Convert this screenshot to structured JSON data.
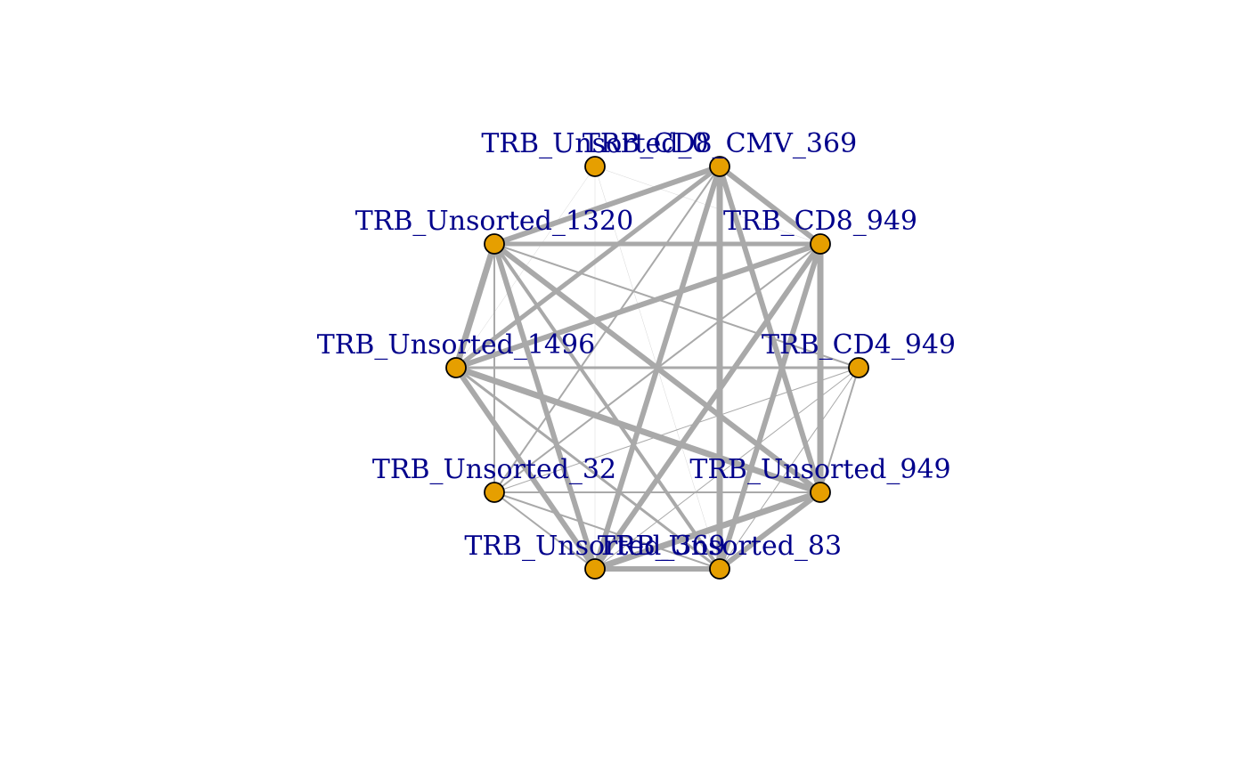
{
  "graph": {
    "node_fill": "#E69F00",
    "node_stroke": "#000000",
    "edge_color": "#A9A9A9",
    "label_color": "#00008B",
    "nodes": [
      {
        "id": "TRB_Unsorted_0",
        "label": "TRB_Unsorted_0"
      },
      {
        "id": "TRB_CD8_CMV_369",
        "label": "TRB_CD8_CMV_369"
      },
      {
        "id": "TRB_CD8_949",
        "label": "TRB_CD8_949"
      },
      {
        "id": "TRB_CD4_949",
        "label": "TRB_CD4_949"
      },
      {
        "id": "TRB_Unsorted_949",
        "label": "TRB_Unsorted_949"
      },
      {
        "id": "TRB_Unsorted_83",
        "label": "TRB_Unsorted_83"
      },
      {
        "id": "TRB_Unsorted_369",
        "label": "TRB_Unsorted_369"
      },
      {
        "id": "TRB_Unsorted_32",
        "label": "TRB_Unsorted_32"
      },
      {
        "id": "TRB_Unsorted_1496",
        "label": "TRB_Unsorted_1496"
      },
      {
        "id": "TRB_Unsorted_1320",
        "label": "TRB_Unsorted_1320"
      }
    ],
    "edges": [
      {
        "source": "TRB_CD8_CMV_369",
        "target": "TRB_CD8_949",
        "weight": 6
      },
      {
        "source": "TRB_CD8_CMV_369",
        "target": "TRB_Unsorted_1320",
        "weight": 6
      },
      {
        "source": "TRB_CD8_CMV_369",
        "target": "TRB_Unsorted_1496",
        "weight": 5
      },
      {
        "source": "TRB_CD8_CMV_369",
        "target": "TRB_Unsorted_83",
        "weight": 7
      },
      {
        "source": "TRB_CD8_CMV_369",
        "target": "TRB_Unsorted_369",
        "weight": 6
      },
      {
        "source": "TRB_CD8_CMV_369",
        "target": "TRB_Unsorted_949",
        "weight": 6
      },
      {
        "source": "TRB_CD8_CMV_369",
        "target": "TRB_Unsorted_32",
        "weight": 2
      },
      {
        "source": "TRB_CD8_949",
        "target": "TRB_Unsorted_1320",
        "weight": 5
      },
      {
        "source": "TRB_CD8_949",
        "target": "TRB_Unsorted_1496",
        "weight": 6
      },
      {
        "source": "TRB_CD8_949",
        "target": "TRB_Unsorted_949",
        "weight": 7
      },
      {
        "source": "TRB_CD8_949",
        "target": "TRB_Unsorted_83",
        "weight": 6
      },
      {
        "source": "TRB_CD8_949",
        "target": "TRB_Unsorted_369",
        "weight": 6
      },
      {
        "source": "TRB_CD8_949",
        "target": "TRB_Unsorted_32",
        "weight": 2
      },
      {
        "source": "TRB_Unsorted_1320",
        "target": "TRB_Unsorted_1496",
        "weight": 7
      },
      {
        "source": "TRB_Unsorted_1320",
        "target": "TRB_Unsorted_949",
        "weight": 6
      },
      {
        "source": "TRB_Unsorted_1320",
        "target": "TRB_Unsorted_83",
        "weight": 4
      },
      {
        "source": "TRB_Unsorted_1320",
        "target": "TRB_Unsorted_369",
        "weight": 6
      },
      {
        "source": "TRB_Unsorted_1320",
        "target": "TRB_Unsorted_32",
        "weight": 2
      },
      {
        "source": "TRB_Unsorted_1320",
        "target": "TRB_CD4_949",
        "weight": 2
      },
      {
        "source": "TRB_Unsorted_1496",
        "target": "TRB_Unsorted_949",
        "weight": 7
      },
      {
        "source": "TRB_Unsorted_1496",
        "target": "TRB_Unsorted_369",
        "weight": 6
      },
      {
        "source": "TRB_Unsorted_1496",
        "target": "TRB_Unsorted_83",
        "weight": 3
      },
      {
        "source": "TRB_Unsorted_1496",
        "target": "TRB_CD4_949",
        "weight": 3
      },
      {
        "source": "TRB_Unsorted_949",
        "target": "TRB_Unsorted_369",
        "weight": 7
      },
      {
        "source": "TRB_Unsorted_949",
        "target": "TRB_Unsorted_83",
        "weight": 6
      },
      {
        "source": "TRB_Unsorted_949",
        "target": "TRB_Unsorted_32",
        "weight": 2
      },
      {
        "source": "TRB_Unsorted_949",
        "target": "TRB_CD4_949",
        "weight": 2
      },
      {
        "source": "TRB_Unsorted_369",
        "target": "TRB_Unsorted_83",
        "weight": 6
      },
      {
        "source": "TRB_Unsorted_369",
        "target": "TRB_Unsorted_32",
        "weight": 2
      },
      {
        "source": "TRB_Unsorted_83",
        "target": "TRB_Unsorted_32",
        "weight": 2
      },
      {
        "source": "TRB_CD4_949",
        "target": "TRB_Unsorted_369",
        "weight": 1
      },
      {
        "source": "TRB_CD4_949",
        "target": "TRB_Unsorted_83",
        "weight": 1
      },
      {
        "source": "TRB_CD4_949",
        "target": "TRB_Unsorted_32",
        "weight": 1
      },
      {
        "source": "TRB_Unsorted_0",
        "target": "TRB_Unsorted_83",
        "weight": 0.4
      },
      {
        "source": "TRB_Unsorted_0",
        "target": "TRB_Unsorted_369",
        "weight": 0.4
      },
      {
        "source": "TRB_Unsorted_0",
        "target": "TRB_Unsorted_1496",
        "weight": 0.4
      },
      {
        "source": "TRB_Unsorted_0",
        "target": "TRB_CD8_949",
        "weight": 0.4
      }
    ]
  }
}
